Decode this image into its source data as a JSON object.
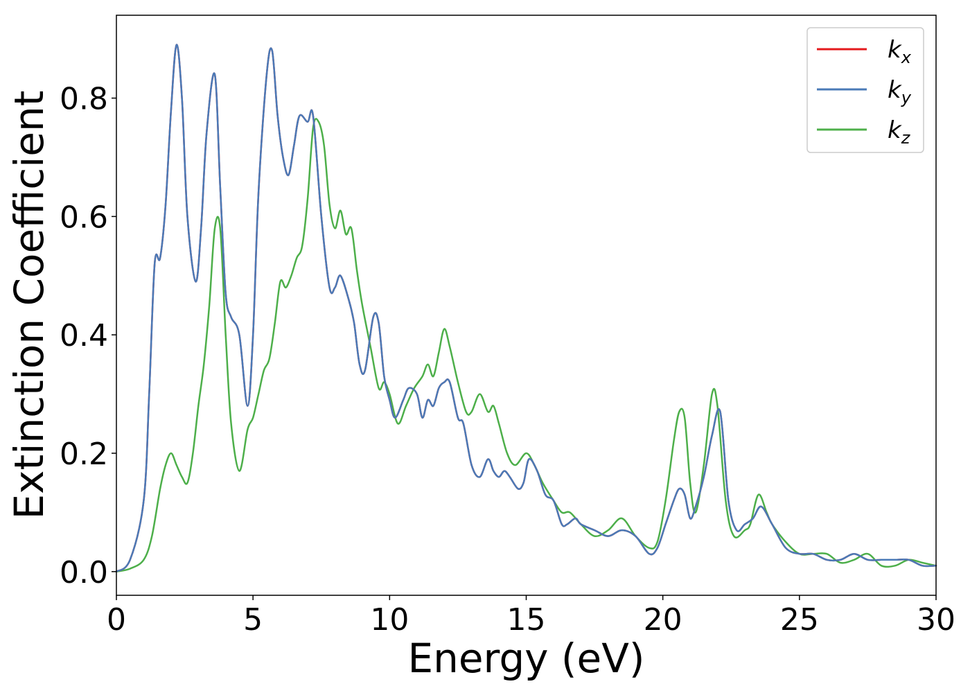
{
  "chart_data": {
    "type": "line",
    "xlabel": "Energy (eV)",
    "ylabel": "Extinction Coefficient",
    "xlim": [
      0,
      30
    ],
    "ylim": [
      -0.04,
      0.94
    ],
    "xticks": [
      0,
      5,
      10,
      15,
      20,
      25,
      30
    ],
    "yticks": [
      0.0,
      0.2,
      0.4,
      0.6,
      0.8
    ],
    "xtick_labels": [
      "0",
      "5",
      "10",
      "15",
      "20",
      "25",
      "30"
    ],
    "ytick_labels": [
      "0.0",
      "0.2",
      "0.4",
      "0.6",
      "0.8"
    ],
    "grid": false,
    "legend_position": "top-right",
    "series": [
      {
        "name": "k_x",
        "label_base": "k",
        "label_sub": "x",
        "color": "#e41a1c",
        "x": [
          0,
          0.5,
          1.0,
          1.2,
          1.4,
          1.6,
          1.8,
          2.0,
          2.2,
          2.4,
          2.6,
          2.9,
          3.1,
          3.3,
          3.6,
          3.8,
          4.0,
          4.2,
          4.5,
          4.8,
          5.0,
          5.2,
          5.5,
          5.7,
          5.9,
          6.1,
          6.3,
          6.5,
          6.7,
          7.0,
          7.2,
          7.5,
          7.8,
          8.0,
          8.2,
          8.5,
          8.7,
          8.9,
          9.1,
          9.4,
          9.6,
          9.8,
          10.0,
          10.2,
          10.5,
          10.7,
          11.0,
          11.2,
          11.4,
          11.6,
          11.8,
          12.0,
          12.2,
          12.5,
          12.7,
          13.0,
          13.3,
          13.6,
          13.8,
          14.0,
          14.2,
          14.4,
          14.7,
          14.9,
          15.1,
          15.4,
          15.7,
          16.0,
          16.3,
          16.5,
          16.8,
          17.0,
          17.5,
          18.0,
          18.5,
          19.0,
          19.5,
          19.8,
          20.1,
          20.4,
          20.6,
          20.8,
          21.0,
          21.2,
          21.5,
          21.8,
          22.1,
          22.4,
          22.7,
          23.0,
          23.3,
          23.6,
          24.0,
          24.5,
          25.0,
          25.5,
          26.0,
          26.5,
          27.0,
          27.5,
          28.0,
          28.5,
          29.0,
          29.5,
          30.0
        ],
        "values": [
          0.0,
          0.02,
          0.12,
          0.3,
          0.52,
          0.53,
          0.62,
          0.78,
          0.89,
          0.8,
          0.6,
          0.49,
          0.58,
          0.74,
          0.84,
          0.65,
          0.47,
          0.43,
          0.4,
          0.28,
          0.4,
          0.64,
          0.84,
          0.88,
          0.77,
          0.7,
          0.67,
          0.72,
          0.77,
          0.76,
          0.77,
          0.6,
          0.48,
          0.48,
          0.5,
          0.46,
          0.42,
          0.35,
          0.34,
          0.43,
          0.42,
          0.33,
          0.29,
          0.26,
          0.29,
          0.31,
          0.3,
          0.26,
          0.29,
          0.28,
          0.31,
          0.32,
          0.32,
          0.26,
          0.25,
          0.18,
          0.16,
          0.19,
          0.17,
          0.16,
          0.17,
          0.16,
          0.14,
          0.15,
          0.19,
          0.17,
          0.13,
          0.12,
          0.08,
          0.08,
          0.09,
          0.08,
          0.07,
          0.06,
          0.07,
          0.06,
          0.03,
          0.04,
          0.08,
          0.12,
          0.14,
          0.13,
          0.09,
          0.11,
          0.16,
          0.23,
          0.27,
          0.12,
          0.07,
          0.08,
          0.09,
          0.11,
          0.08,
          0.04,
          0.03,
          0.03,
          0.02,
          0.02,
          0.03,
          0.02,
          0.02,
          0.02,
          0.02,
          0.01,
          0.01
        ]
      },
      {
        "name": "k_y",
        "label_base": "k",
        "label_sub": "y",
        "color": "#4a7ab7",
        "x": [
          0,
          0.5,
          1.0,
          1.2,
          1.4,
          1.6,
          1.8,
          2.0,
          2.2,
          2.4,
          2.6,
          2.9,
          3.1,
          3.3,
          3.6,
          3.8,
          4.0,
          4.2,
          4.5,
          4.8,
          5.0,
          5.2,
          5.5,
          5.7,
          5.9,
          6.1,
          6.3,
          6.5,
          6.7,
          7.0,
          7.2,
          7.5,
          7.8,
          8.0,
          8.2,
          8.5,
          8.7,
          8.9,
          9.1,
          9.4,
          9.6,
          9.8,
          10.0,
          10.2,
          10.5,
          10.7,
          11.0,
          11.2,
          11.4,
          11.6,
          11.8,
          12.0,
          12.2,
          12.5,
          12.7,
          13.0,
          13.3,
          13.6,
          13.8,
          14.0,
          14.2,
          14.4,
          14.7,
          14.9,
          15.1,
          15.4,
          15.7,
          16.0,
          16.3,
          16.5,
          16.8,
          17.0,
          17.5,
          18.0,
          18.5,
          19.0,
          19.5,
          19.8,
          20.1,
          20.4,
          20.6,
          20.8,
          21.0,
          21.2,
          21.5,
          21.8,
          22.1,
          22.4,
          22.7,
          23.0,
          23.3,
          23.6,
          24.0,
          24.5,
          25.0,
          25.5,
          26.0,
          26.5,
          27.0,
          27.5,
          28.0,
          28.5,
          29.0,
          29.5,
          30.0
        ],
        "values": [
          0.0,
          0.02,
          0.12,
          0.3,
          0.52,
          0.53,
          0.62,
          0.78,
          0.89,
          0.8,
          0.6,
          0.49,
          0.58,
          0.74,
          0.84,
          0.65,
          0.47,
          0.43,
          0.4,
          0.28,
          0.4,
          0.64,
          0.84,
          0.88,
          0.77,
          0.7,
          0.67,
          0.72,
          0.77,
          0.76,
          0.77,
          0.6,
          0.48,
          0.48,
          0.5,
          0.46,
          0.42,
          0.35,
          0.34,
          0.43,
          0.42,
          0.33,
          0.29,
          0.26,
          0.29,
          0.31,
          0.3,
          0.26,
          0.29,
          0.28,
          0.31,
          0.32,
          0.32,
          0.26,
          0.25,
          0.18,
          0.16,
          0.19,
          0.17,
          0.16,
          0.17,
          0.16,
          0.14,
          0.15,
          0.19,
          0.17,
          0.13,
          0.12,
          0.08,
          0.08,
          0.09,
          0.08,
          0.07,
          0.06,
          0.07,
          0.06,
          0.03,
          0.04,
          0.08,
          0.12,
          0.14,
          0.13,
          0.09,
          0.11,
          0.16,
          0.23,
          0.27,
          0.12,
          0.07,
          0.08,
          0.09,
          0.11,
          0.08,
          0.04,
          0.03,
          0.03,
          0.02,
          0.02,
          0.03,
          0.02,
          0.02,
          0.02,
          0.02,
          0.01,
          0.01
        ]
      },
      {
        "name": "k_z",
        "label_base": "k",
        "label_sub": "z",
        "color": "#4daf4a",
        "x": [
          0,
          0.5,
          1.0,
          1.3,
          1.6,
          1.8,
          2.0,
          2.2,
          2.4,
          2.6,
          2.8,
          3.0,
          3.2,
          3.4,
          3.6,
          3.8,
          4.0,
          4.2,
          4.5,
          4.8,
          5.0,
          5.2,
          5.4,
          5.6,
          5.8,
          6.0,
          6.2,
          6.4,
          6.6,
          6.8,
          7.0,
          7.2,
          7.4,
          7.6,
          7.8,
          8.0,
          8.2,
          8.4,
          8.6,
          8.8,
          9.0,
          9.3,
          9.6,
          9.8,
          10.0,
          10.3,
          10.6,
          10.9,
          11.2,
          11.4,
          11.6,
          11.8,
          12.0,
          12.2,
          12.5,
          12.8,
          13.0,
          13.3,
          13.6,
          13.8,
          14.0,
          14.3,
          14.6,
          15.0,
          15.3,
          15.6,
          16.0,
          16.3,
          16.6,
          17.0,
          17.5,
          18.0,
          18.5,
          19.0,
          19.5,
          19.8,
          20.1,
          20.4,
          20.6,
          20.8,
          21.0,
          21.2,
          21.5,
          21.8,
          22.0,
          22.3,
          22.6,
          23.0,
          23.2,
          23.5,
          23.8,
          24.0,
          24.5,
          25.0,
          25.5,
          26.0,
          26.5,
          27.0,
          27.5,
          28.0,
          28.5,
          29.0,
          29.5,
          30.0
        ],
        "values": [
          0.0,
          0.005,
          0.02,
          0.06,
          0.14,
          0.18,
          0.2,
          0.18,
          0.16,
          0.15,
          0.2,
          0.28,
          0.35,
          0.45,
          0.58,
          0.58,
          0.4,
          0.25,
          0.17,
          0.24,
          0.26,
          0.3,
          0.34,
          0.36,
          0.42,
          0.49,
          0.48,
          0.5,
          0.53,
          0.55,
          0.63,
          0.75,
          0.76,
          0.72,
          0.62,
          0.58,
          0.61,
          0.57,
          0.58,
          0.51,
          0.45,
          0.38,
          0.31,
          0.32,
          0.3,
          0.25,
          0.28,
          0.31,
          0.33,
          0.35,
          0.33,
          0.37,
          0.41,
          0.38,
          0.32,
          0.27,
          0.27,
          0.3,
          0.27,
          0.28,
          0.25,
          0.2,
          0.18,
          0.2,
          0.18,
          0.15,
          0.12,
          0.1,
          0.1,
          0.08,
          0.06,
          0.07,
          0.09,
          0.06,
          0.04,
          0.05,
          0.12,
          0.22,
          0.27,
          0.26,
          0.15,
          0.1,
          0.18,
          0.3,
          0.28,
          0.12,
          0.06,
          0.07,
          0.08,
          0.13,
          0.1,
          0.08,
          0.05,
          0.03,
          0.03,
          0.03,
          0.015,
          0.02,
          0.03,
          0.01,
          0.01,
          0.02,
          0.015,
          0.01
        ]
      }
    ]
  }
}
